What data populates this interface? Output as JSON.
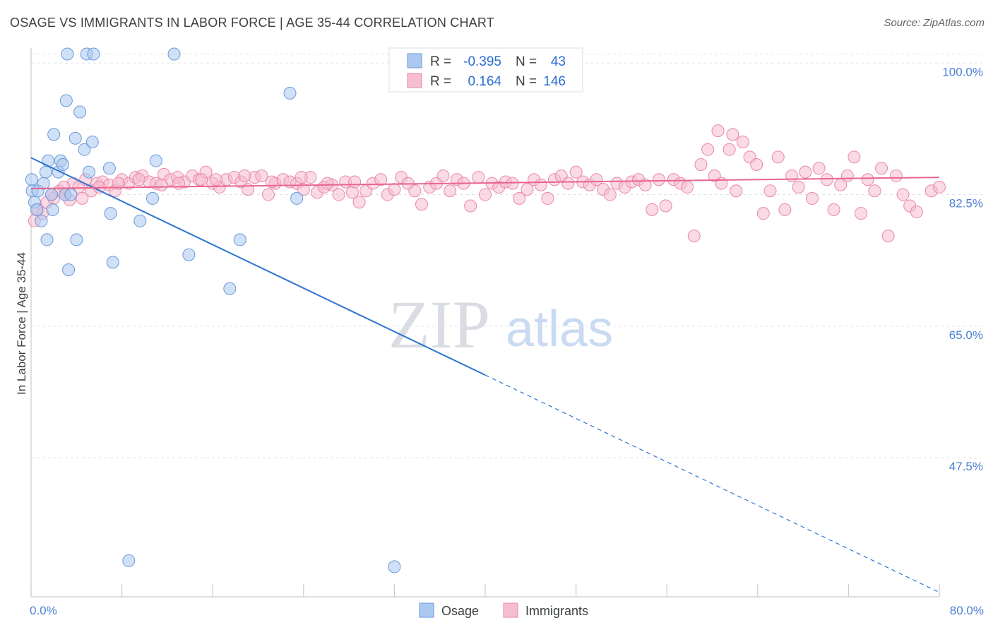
{
  "header": {
    "title": "OSAGE VS IMMIGRANTS IN LABOR FORCE | AGE 35-44 CORRELATION CHART",
    "source": "Source: ZipAtlas.com"
  },
  "watermark": {
    "zip": "ZIP",
    "atlas": "atlas"
  },
  "colors": {
    "osage_fill": "#aac8f0",
    "osage_stroke": "#6a9ad8",
    "osage_line": "#2f74d0",
    "immigrants_fill": "#f6bcd0",
    "immigrants_stroke": "#e888aa",
    "immigrants_line": "#e8658f",
    "grid": "#dfe3e8",
    "value_text": "#2a6cd0"
  },
  "legend": {
    "rows": [
      {
        "r_label": "R =",
        "r_value": "-0.395",
        "n_label": "N =",
        "n_value": "43"
      },
      {
        "r_label": "R =",
        "r_value": "0.164",
        "n_label": "N =",
        "n_value": "146"
      }
    ]
  },
  "bottom_legend": [
    "Osage",
    "Immigrants"
  ],
  "chart_data": {
    "type": "scatter",
    "title": "OSAGE VS IMMIGRANTS IN LABOR FORCE | AGE 35-44 CORRELATION CHART",
    "xlabel": "",
    "ylabel": "In Labor Force | Age 35-44",
    "xlim": [
      0,
      80
    ],
    "ylim": [
      29,
      102
    ],
    "x_tick_labels": [
      "0.0%",
      "80.0%"
    ],
    "y_ticks": [
      47.5,
      65.0,
      82.5,
      100.0
    ],
    "y_tick_labels": [
      "47.5%",
      "65.0%",
      "82.5%",
      "100.0%"
    ],
    "grid": true,
    "series": [
      {
        "name": "Osage",
        "R": -0.395,
        "N": 43,
        "trend": {
          "x0": 0,
          "y0": 87.4,
          "x1": 40,
          "y1": 58.5,
          "dashed_to_x": 80,
          "dashed_to_y": 29.6
        },
        "points": [
          [
            0.05,
            84.5
          ],
          [
            0.1,
            83.0
          ],
          [
            0.3,
            81.5
          ],
          [
            0.5,
            80.5
          ],
          [
            0.6,
            83.0
          ],
          [
            0.9,
            79.0
          ],
          [
            1.1,
            84.0
          ],
          [
            1.3,
            85.5
          ],
          [
            1.4,
            76.5
          ],
          [
            1.5,
            87.0
          ],
          [
            1.8,
            82.5
          ],
          [
            1.9,
            80.5
          ],
          [
            2.0,
            90.5
          ],
          [
            2.4,
            85.5
          ],
          [
            2.6,
            87.0
          ],
          [
            2.8,
            86.5
          ],
          [
            3.0,
            82.5
          ],
          [
            3.2,
            101.2
          ],
          [
            3.1,
            95.0
          ],
          [
            3.3,
            72.5
          ],
          [
            3.5,
            82.5
          ],
          [
            3.9,
            90.0
          ],
          [
            4.0,
            76.5
          ],
          [
            4.3,
            93.5
          ],
          [
            4.7,
            88.5
          ],
          [
            4.9,
            101.2
          ],
          [
            5.1,
            85.5
          ],
          [
            5.4,
            89.5
          ],
          [
            5.5,
            101.2
          ],
          [
            6.9,
            86.0
          ],
          [
            7.0,
            80.0
          ],
          [
            7.2,
            73.5
          ],
          [
            8.6,
            33.8
          ],
          [
            9.6,
            79.0
          ],
          [
            10.7,
            82.0
          ],
          [
            11.0,
            87.0
          ],
          [
            12.6,
            101.2
          ],
          [
            13.9,
            74.5
          ],
          [
            17.5,
            70.0
          ],
          [
            18.4,
            76.5
          ],
          [
            22.8,
            96.0
          ],
          [
            23.4,
            82.0
          ],
          [
            32.0,
            33.0
          ]
        ]
      },
      {
        "name": "Immigrants",
        "R": 0.164,
        "N": 146,
        "trend": {
          "x0": 0,
          "y0": 83.3,
          "x1": 80,
          "y1": 84.8
        },
        "points": [
          [
            0.3,
            79.0
          ],
          [
            0.6,
            80.5
          ],
          [
            1.0,
            80.0
          ],
          [
            1.4,
            81.5
          ],
          [
            2.0,
            82.0
          ],
          [
            2.5,
            83.0
          ],
          [
            3.0,
            82.5
          ],
          [
            3.4,
            81.8
          ],
          [
            3.7,
            84.0
          ],
          [
            4.2,
            83.5
          ],
          [
            4.8,
            84.5
          ],
          [
            5.3,
            83.0
          ],
          [
            5.8,
            84.0
          ],
          [
            6.3,
            84.2
          ],
          [
            6.9,
            83.8
          ],
          [
            7.4,
            83.0
          ],
          [
            8.0,
            84.5
          ],
          [
            8.6,
            84.0
          ],
          [
            9.2,
            84.8
          ],
          [
            9.8,
            85.0
          ],
          [
            10.4,
            84.2
          ],
          [
            11.0,
            84.0
          ],
          [
            11.7,
            85.2
          ],
          [
            12.3,
            84.5
          ],
          [
            12.9,
            84.8
          ],
          [
            13.5,
            84.2
          ],
          [
            14.2,
            85.0
          ],
          [
            14.8,
            84.5
          ],
          [
            15.4,
            85.5
          ],
          [
            16.0,
            84.0
          ],
          [
            16.6,
            83.5
          ],
          [
            17.2,
            84.5
          ],
          [
            17.9,
            84.8
          ],
          [
            18.5,
            84.2
          ],
          [
            19.1,
            83.2
          ],
          [
            19.7,
            84.8
          ],
          [
            20.3,
            85.0
          ],
          [
            20.9,
            82.5
          ],
          [
            21.5,
            84.0
          ],
          [
            22.2,
            84.5
          ],
          [
            22.8,
            84.2
          ],
          [
            23.4,
            84.0
          ],
          [
            24.0,
            83.2
          ],
          [
            24.6,
            84.8
          ],
          [
            25.2,
            82.8
          ],
          [
            25.8,
            83.5
          ],
          [
            26.5,
            83.8
          ],
          [
            27.1,
            82.5
          ],
          [
            27.7,
            84.2
          ],
          [
            28.3,
            82.8
          ],
          [
            28.9,
            81.5
          ],
          [
            29.5,
            83.0
          ],
          [
            30.1,
            84.0
          ],
          [
            30.8,
            84.5
          ],
          [
            31.4,
            82.5
          ],
          [
            32.0,
            83.2
          ],
          [
            32.6,
            84.8
          ],
          [
            33.2,
            84.0
          ],
          [
            33.8,
            83.0
          ],
          [
            34.4,
            81.2
          ],
          [
            35.1,
            83.5
          ],
          [
            35.7,
            84.0
          ],
          [
            36.3,
            85.0
          ],
          [
            36.9,
            83.0
          ],
          [
            37.5,
            84.5
          ],
          [
            38.1,
            84.0
          ],
          [
            38.7,
            81.0
          ],
          [
            39.4,
            84.8
          ],
          [
            40.0,
            82.5
          ],
          [
            40.6,
            84.0
          ],
          [
            41.2,
            83.5
          ],
          [
            41.8,
            84.2
          ],
          [
            42.4,
            84.0
          ],
          [
            43.0,
            82.0
          ],
          [
            43.7,
            83.2
          ],
          [
            44.3,
            84.5
          ],
          [
            44.9,
            83.8
          ],
          [
            45.5,
            82.0
          ],
          [
            46.1,
            84.5
          ],
          [
            46.7,
            85.0
          ],
          [
            47.3,
            84.0
          ],
          [
            48.0,
            85.5
          ],
          [
            48.6,
            84.2
          ],
          [
            49.2,
            83.8
          ],
          [
            49.8,
            84.5
          ],
          [
            50.4,
            83.2
          ],
          [
            51.0,
            82.5
          ],
          [
            51.6,
            84.0
          ],
          [
            52.3,
            83.5
          ],
          [
            52.9,
            84.2
          ],
          [
            53.5,
            84.5
          ],
          [
            54.1,
            83.8
          ],
          [
            54.7,
            80.5
          ],
          [
            55.3,
            84.5
          ],
          [
            55.9,
            81.0
          ],
          [
            56.6,
            84.5
          ],
          [
            57.2,
            84.0
          ],
          [
            57.8,
            83.5
          ],
          [
            58.4,
            77.0
          ],
          [
            59.0,
            86.5
          ],
          [
            59.6,
            88.5
          ],
          [
            60.2,
            85.0
          ],
          [
            60.8,
            84.0
          ],
          [
            60.5,
            91.0
          ],
          [
            61.5,
            88.5
          ],
          [
            61.8,
            90.5
          ],
          [
            62.1,
            83.0
          ],
          [
            62.7,
            89.5
          ],
          [
            63.3,
            87.5
          ],
          [
            63.9,
            86.5
          ],
          [
            64.5,
            80.0
          ],
          [
            65.1,
            83.0
          ],
          [
            65.8,
            87.5
          ],
          [
            66.4,
            80.5
          ],
          [
            67.0,
            85.0
          ],
          [
            67.6,
            83.5
          ],
          [
            68.2,
            85.5
          ],
          [
            68.8,
            82.0
          ],
          [
            69.4,
            86.0
          ],
          [
            70.1,
            84.5
          ],
          [
            70.7,
            80.5
          ],
          [
            71.3,
            83.8
          ],
          [
            71.9,
            85.0
          ],
          [
            72.5,
            87.5
          ],
          [
            73.1,
            80.0
          ],
          [
            73.7,
            84.5
          ],
          [
            74.3,
            83.0
          ],
          [
            74.9,
            86.0
          ],
          [
            75.5,
            77.0
          ],
          [
            76.2,
            85.0
          ],
          [
            76.8,
            82.5
          ],
          [
            77.4,
            81.0
          ],
          [
            78.0,
            80.2
          ],
          [
            79.3,
            83.0
          ],
          [
            80.0,
            83.5
          ],
          [
            1.8,
            82.5
          ],
          [
            2.9,
            83.5
          ],
          [
            4.5,
            82.0
          ],
          [
            6.0,
            83.5
          ],
          [
            7.7,
            84.0
          ],
          [
            9.5,
            84.5
          ],
          [
            11.5,
            83.8
          ],
          [
            13.0,
            84.0
          ],
          [
            15.0,
            84.5
          ],
          [
            16.3,
            84.5
          ],
          [
            18.8,
            85.0
          ],
          [
            21.2,
            84.2
          ],
          [
            23.8,
            84.8
          ],
          [
            26.1,
            84.0
          ],
          [
            28.5,
            84.2
          ]
        ]
      }
    ]
  }
}
